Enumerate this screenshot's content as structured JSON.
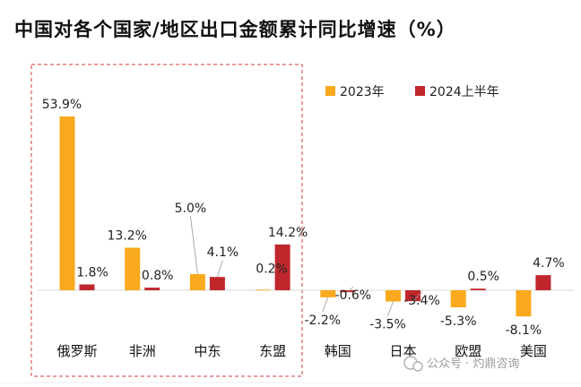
{
  "chart_data": {
    "type": "bar",
    "title": "中国对各个国家/地区出口金额累计同比增速（%）",
    "categories": [
      "俄罗斯",
      "非洲",
      "中东",
      "东盟",
      "韩国",
      "日本",
      "欧盟",
      "美国"
    ],
    "series": [
      {
        "name": "2023年",
        "color": "#F9A91D",
        "values": [
          53.9,
          13.2,
          5.0,
          0.2,
          -2.2,
          -3.5,
          -5.3,
          -8.1
        ],
        "labels": [
          "53.9%",
          "13.2%",
          "5.0%",
          "0.2%",
          "-2.2%",
          "-3.5%",
          "-5.3%",
          "-8.1%"
        ]
      },
      {
        "name": "2024上半年",
        "color": "#C0272D",
        "values": [
          1.8,
          0.8,
          4.1,
          14.2,
          -0.6,
          -3.4,
          0.5,
          4.7
        ],
        "labels": [
          "1.8%",
          "0.8%",
          "4.1%",
          "14.2%",
          "-0.6%",
          "-3.4%",
          "0.5%",
          "4.7%"
        ]
      }
    ],
    "ylabel": "",
    "xlabel": "",
    "legend_position": "top-right",
    "highlight_box": "dashed red box around 俄罗斯, 非洲, 中东, 东盟"
  },
  "watermark": "公众号 · 灼鼎咨询"
}
